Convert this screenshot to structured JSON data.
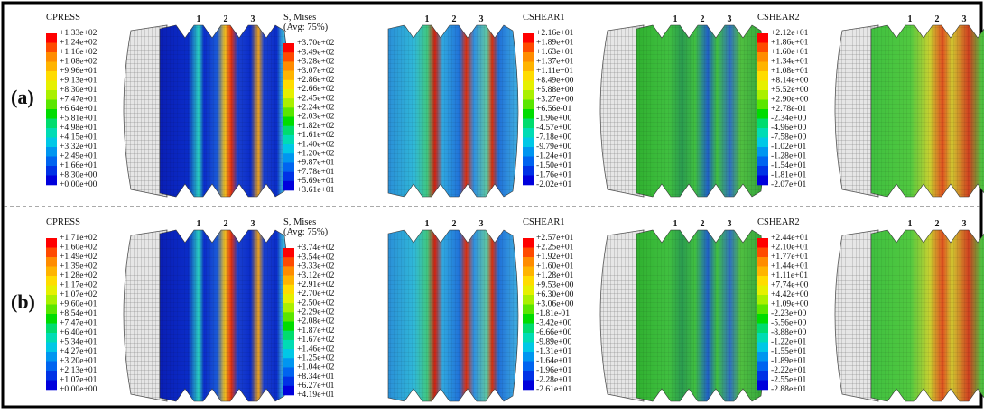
{
  "ring_labels": [
    "1",
    "2",
    "3"
  ],
  "rows": [
    {
      "label": "(a)",
      "panels": [
        {
          "title_lines": [
            "CPRESS"
          ],
          "labels": [
            "+1.33e+02",
            "+1.24e+02",
            "+1.16e+02",
            "+1.08e+02",
            "+9.96e+01",
            "+9.13e+01",
            "+8.30e+01",
            "+7.47e+01",
            "+6.64e+01",
            "+5.81e+01",
            "+4.98e+01",
            "+4.15e+01",
            "+3.32e+01",
            "+2.49e+01",
            "+1.66e+01",
            "+8.30e+00",
            "+0.00e+00"
          ]
        },
        {
          "title_lines": [
            "S, Mises",
            "(Avg: 75%)"
          ],
          "labels": [
            "+3.70e+02",
            "+3.49e+02",
            "+3.28e+02",
            "+3.07e+02",
            "+2.86e+02",
            "+2.66e+02",
            "+2.45e+02",
            "+2.24e+02",
            "+2.03e+02",
            "+1.82e+02",
            "+1.61e+02",
            "+1.40e+02",
            "+1.20e+02",
            "+9.87e+01",
            "+7.78e+01",
            "+5.69e+01",
            "+3.61e+01"
          ]
        },
        {
          "title_lines": [
            "CSHEAR1"
          ],
          "labels": [
            "+2.16e+01",
            "+1.89e+01",
            "+1.63e+01",
            "+1.37e+01",
            "+1.11e+01",
            "+8.49e+00",
            "+5.88e+00",
            "+3.27e+00",
            "+6.56e-01",
            "-1.96e+00",
            "-4.57e+00",
            "-7.18e+00",
            "-9.79e+00",
            "-1.24e+01",
            "-1.50e+01",
            "-1.76e+01",
            "-2.02e+01"
          ]
        },
        {
          "title_lines": [
            "CSHEAR2"
          ],
          "labels": [
            "+2.12e+01",
            "+1.86e+01",
            "+1.60e+01",
            "+1.34e+01",
            "+1.08e+01",
            "+8.14e+00",
            "+5.52e+00",
            "+2.90e+00",
            "+2.78e-01",
            "-2.34e+00",
            "-4.96e+00",
            "-7.58e+00",
            "-1.02e+01",
            "-1.28e+01",
            "-1.54e+01",
            "-1.81e+01",
            "-2.07e+01"
          ]
        }
      ]
    },
    {
      "label": "(b)",
      "panels": [
        {
          "title_lines": [
            "CPRESS"
          ],
          "labels": [
            "+1.71e+02",
            "+1.60e+02",
            "+1.49e+02",
            "+1.39e+02",
            "+1.28e+02",
            "+1.17e+02",
            "+1.07e+02",
            "+9.60e+01",
            "+8.54e+01",
            "+7.47e+01",
            "+6.40e+01",
            "+5.34e+01",
            "+4.27e+01",
            "+3.20e+01",
            "+2.13e+01",
            "+1.07e+01",
            "+0.00e+00"
          ]
        },
        {
          "title_lines": [
            "S, Mises",
            "(Avg: 75%)"
          ],
          "labels": [
            "+3.74e+02",
            "+3.54e+02",
            "+3.33e+02",
            "+3.12e+02",
            "+2.91e+02",
            "+2.70e+02",
            "+2.50e+02",
            "+2.29e+02",
            "+2.08e+02",
            "+1.87e+02",
            "+1.67e+02",
            "+1.46e+02",
            "+1.25e+02",
            "+1.04e+02",
            "+8.34e+01",
            "+6.27e+01",
            "+4.19e+01"
          ]
        },
        {
          "title_lines": [
            "CSHEAR1"
          ],
          "labels": [
            "+2.57e+01",
            "+2.25e+01",
            "+1.92e+01",
            "+1.60e+01",
            "+1.28e+01",
            "+9.53e+00",
            "+6.30e+00",
            "+3.06e+00",
            "-1.81e-01",
            "-3.42e+00",
            "-6.66e+00",
            "-9.89e+00",
            "-1.31e+01",
            "-1.64e+01",
            "-1.96e+01",
            "-2.28e+01",
            "-2.61e+01"
          ]
        },
        {
          "title_lines": [
            "CSHEAR2"
          ],
          "labels": [
            "+2.44e+01",
            "+2.10e+01",
            "+1.77e+01",
            "+1.44e+01",
            "+1.11e+01",
            "+7.74e+00",
            "+4.42e+00",
            "+1.09e+00",
            "-2.23e+00",
            "-5.56e+00",
            "-8.88e+00",
            "-1.22e+01",
            "-1.55e+01",
            "-1.89e+01",
            "-2.22e+01",
            "-2.55e+01",
            "-2.88e+01"
          ]
        }
      ]
    }
  ]
}
